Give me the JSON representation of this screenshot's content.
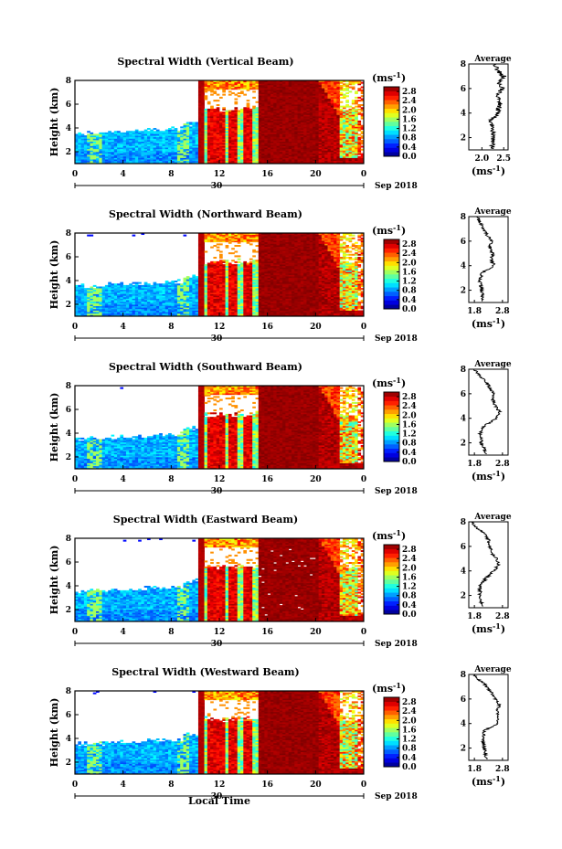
{
  "figure": {
    "x_axis_label": "Local Time",
    "date_label": "Sep 2018",
    "day_label": "30",
    "unit_label": "(ms",
    "unit_exp": "-1",
    "y_axis_label": "Height (km)",
    "avg_title": "Average"
  },
  "time_ticks": [
    "0",
    "4",
    "8",
    "12",
    "16",
    "20",
    "0"
  ],
  "height_ticks": [
    "2",
    "4",
    "6",
    "8"
  ],
  "colorbar_ticks": [
    "0.0",
    "0.4",
    "0.8",
    "1.2",
    "1.6",
    "2.0",
    "2.4",
    "2.8"
  ],
  "chart_data": [
    {
      "type": "heatmap",
      "title": "Spectral Width (Vertical Beam)",
      "xlabel": "Local Time",
      "ylabel": "Height (km)",
      "xlim": [
        0,
        24
      ],
      "ylim": [
        1,
        8
      ],
      "zlim": [
        0,
        3.0
      ],
      "colorbar_label": "(ms-1)",
      "profile": {
        "type": "line",
        "title": "Average",
        "xlabel": "(ms-1)",
        "xticks": [
          "2.0",
          "2.5"
        ],
        "xlim": [
          1.7,
          2.6
        ],
        "heights": [
          1.2,
          2.0,
          2.8,
          3.4,
          4.0,
          4.5,
          5.0,
          5.5,
          6.0,
          6.5,
          7.0,
          7.5,
          8.0
        ],
        "values": [
          2.25,
          2.25,
          2.25,
          2.22,
          2.35,
          2.4,
          2.42,
          2.35,
          2.48,
          2.4,
          2.5,
          2.35,
          2.3
        ]
      }
    },
    {
      "type": "heatmap",
      "title": "Spectral Width (Northward Beam)",
      "xlabel": "Local Time",
      "ylabel": "Height (km)",
      "xlim": [
        0,
        24
      ],
      "ylim": [
        1,
        8
      ],
      "zlim": [
        0,
        3.0
      ],
      "colorbar_label": "(ms-1)",
      "profile": {
        "type": "line",
        "title": "Average",
        "xlabel": "(ms-1)",
        "xticks": [
          "1.8",
          "2.8"
        ],
        "xlim": [
          1.6,
          3.0
        ],
        "heights": [
          1.2,
          2.0,
          2.8,
          3.4,
          4.0,
          4.5,
          5.0,
          5.5,
          6.0,
          6.5,
          7.0,
          7.5,
          8.0
        ],
        "values": [
          2.1,
          2.05,
          2.0,
          2.05,
          2.5,
          2.4,
          2.45,
          2.35,
          2.4,
          2.25,
          2.15,
          2.0,
          1.9
        ]
      }
    },
    {
      "type": "heatmap",
      "title": "Spectral Width (Southward Beam)",
      "xlabel": "Local Time",
      "ylabel": "Height (km)",
      "xlim": [
        0,
        24
      ],
      "ylim": [
        1,
        8
      ],
      "zlim": [
        0,
        3.0
      ],
      "colorbar_label": "(ms-1)",
      "profile": {
        "type": "line",
        "title": "Average",
        "xlabel": "(ms-1)",
        "xticks": [
          "1.8",
          "2.8"
        ],
        "xlim": [
          1.6,
          3.0
        ],
        "heights": [
          1.2,
          2.0,
          2.8,
          3.4,
          4.0,
          4.5,
          5.0,
          5.5,
          6.0,
          6.5,
          7.0,
          7.5,
          8.0
        ],
        "values": [
          2.2,
          2.05,
          2.0,
          2.15,
          2.6,
          2.7,
          2.55,
          2.45,
          2.5,
          2.35,
          2.2,
          2.0,
          1.8
        ]
      }
    },
    {
      "type": "heatmap",
      "title": "Spectral Width (Eastward Beam)",
      "xlabel": "Local Time",
      "ylabel": "Height (km)",
      "xlim": [
        0,
        24
      ],
      "ylim": [
        1,
        8
      ],
      "zlim": [
        0,
        3.0
      ],
      "colorbar_label": "(ms-1)",
      "profile": {
        "type": "line",
        "title": "Average",
        "xlabel": "(ms-1)",
        "xticks": [
          "1.8",
          "2.8"
        ],
        "xlim": [
          1.6,
          3.0
        ],
        "heights": [
          1.2,
          2.0,
          2.8,
          3.4,
          4.0,
          4.5,
          5.0,
          5.5,
          6.0,
          6.5,
          7.0,
          7.5,
          8.0
        ],
        "values": [
          2.05,
          2.0,
          2.0,
          2.2,
          2.5,
          2.65,
          2.6,
          2.4,
          2.35,
          2.3,
          2.2,
          1.9,
          1.7
        ]
      }
    },
    {
      "type": "heatmap",
      "title": "Spectral Width (Westward Beam)",
      "xlabel": "Local Time",
      "ylabel": "Height (km)",
      "xlim": [
        0,
        24
      ],
      "ylim": [
        1,
        8
      ],
      "zlim": [
        0,
        3.0
      ],
      "colorbar_label": "(ms-1)",
      "profile": {
        "type": "line",
        "title": "Average",
        "xlabel": "(ms-1)",
        "xticks": [
          "1.8",
          "2.8"
        ],
        "xlim": [
          1.6,
          3.0
        ],
        "heights": [
          1.2,
          2.0,
          2.8,
          3.4,
          4.0,
          4.5,
          5.0,
          5.5,
          6.0,
          6.5,
          7.0,
          7.5,
          8.0
        ],
        "values": [
          2.2,
          2.15,
          2.1,
          2.15,
          2.6,
          2.65,
          2.6,
          2.7,
          2.55,
          2.4,
          2.25,
          2.0,
          1.8
        ]
      }
    }
  ]
}
